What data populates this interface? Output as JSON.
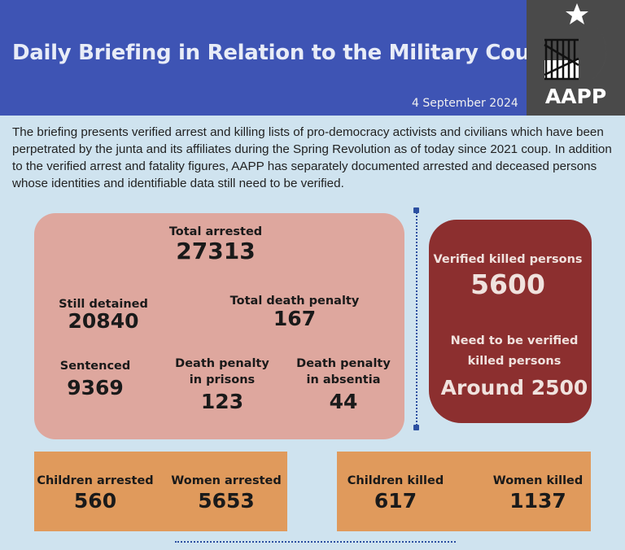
{
  "header": {
    "title": "Daily Briefing in Relation to the Military Coup",
    "date": "4 September 2024",
    "logo_text": "AAPP"
  },
  "intro": "The briefing presents verified arrest and killing lists of pro-democracy activists and civilians which have been perpetrated by the junta and its affiliates during the Spring Revolution as of today since 2021 coup. In addition to the verified arrest and fatality figures, AAPP has separately documented arrested and deceased persons whose identities and identifiable data still need to be verified.",
  "arrests": {
    "total_arrested": {
      "label": "Total arrested",
      "value": "27313"
    },
    "still_detained": {
      "label": "Still detained",
      "value": "20840"
    },
    "total_death_penalty": {
      "label": "Total death penalty",
      "value": "167"
    },
    "sentenced": {
      "label": "Sentenced",
      "value": "9369"
    },
    "death_penalty_prisons": {
      "label1": "Death penalty",
      "label2": "in prisons",
      "value": "123"
    },
    "death_penalty_absentia": {
      "label1": "Death penalty",
      "label2": "in absentia",
      "value": "44"
    }
  },
  "killed": {
    "verified": {
      "label": "Verified killed persons",
      "value": "5600"
    },
    "unverified": {
      "label1": "Need to be verified",
      "label2": "killed persons",
      "value": "Around 2500"
    }
  },
  "bottom_arrests": [
    {
      "label": "Children arrested",
      "value": "560"
    },
    {
      "label": "Women arrested",
      "value": "5653"
    }
  ],
  "bottom_killed": [
    {
      "label": "Children killed",
      "value": "617"
    },
    {
      "label": "Women killed",
      "value": "1137"
    }
  ],
  "colors": {
    "header": "#3e54b4",
    "background": "#cfe3ef",
    "arrest_box": "#dea79e",
    "killed_box": "#8c2f2f",
    "bottom_box": "#e09a5c"
  }
}
